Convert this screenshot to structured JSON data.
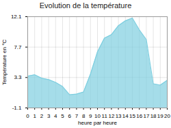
{
  "chart_data": {
    "type": "area",
    "title": "Evolution de la température",
    "x_label": "heure par heure",
    "y_label": "Température en °C",
    "x": [
      0,
      1,
      2,
      3,
      4,
      5,
      6,
      7,
      8,
      9,
      10,
      11,
      12,
      13,
      14,
      15,
      16,
      17,
      18,
      19,
      20
    ],
    "values": [
      3.5,
      3.7,
      3.2,
      3.0,
      2.6,
      2.0,
      0.8,
      0.9,
      1.2,
      3.8,
      7.0,
      9.0,
      9.5,
      10.8,
      11.5,
      11.9,
      10.2,
      8.8,
      2.4,
      2.2,
      2.9
    ],
    "color": "#7fcfe0",
    "xlim": [
      0,
      20
    ],
    "xticks": [
      0,
      1,
      2,
      3,
      4,
      5,
      6,
      7,
      8,
      9,
      10,
      11,
      12,
      13,
      14,
      15,
      16,
      17,
      18,
      19,
      20
    ],
    "ylim": [
      -1.1,
      12.1
    ],
    "yticks": [
      -1.1,
      3.3,
      7.7,
      12.1
    ],
    "grid": true
  }
}
